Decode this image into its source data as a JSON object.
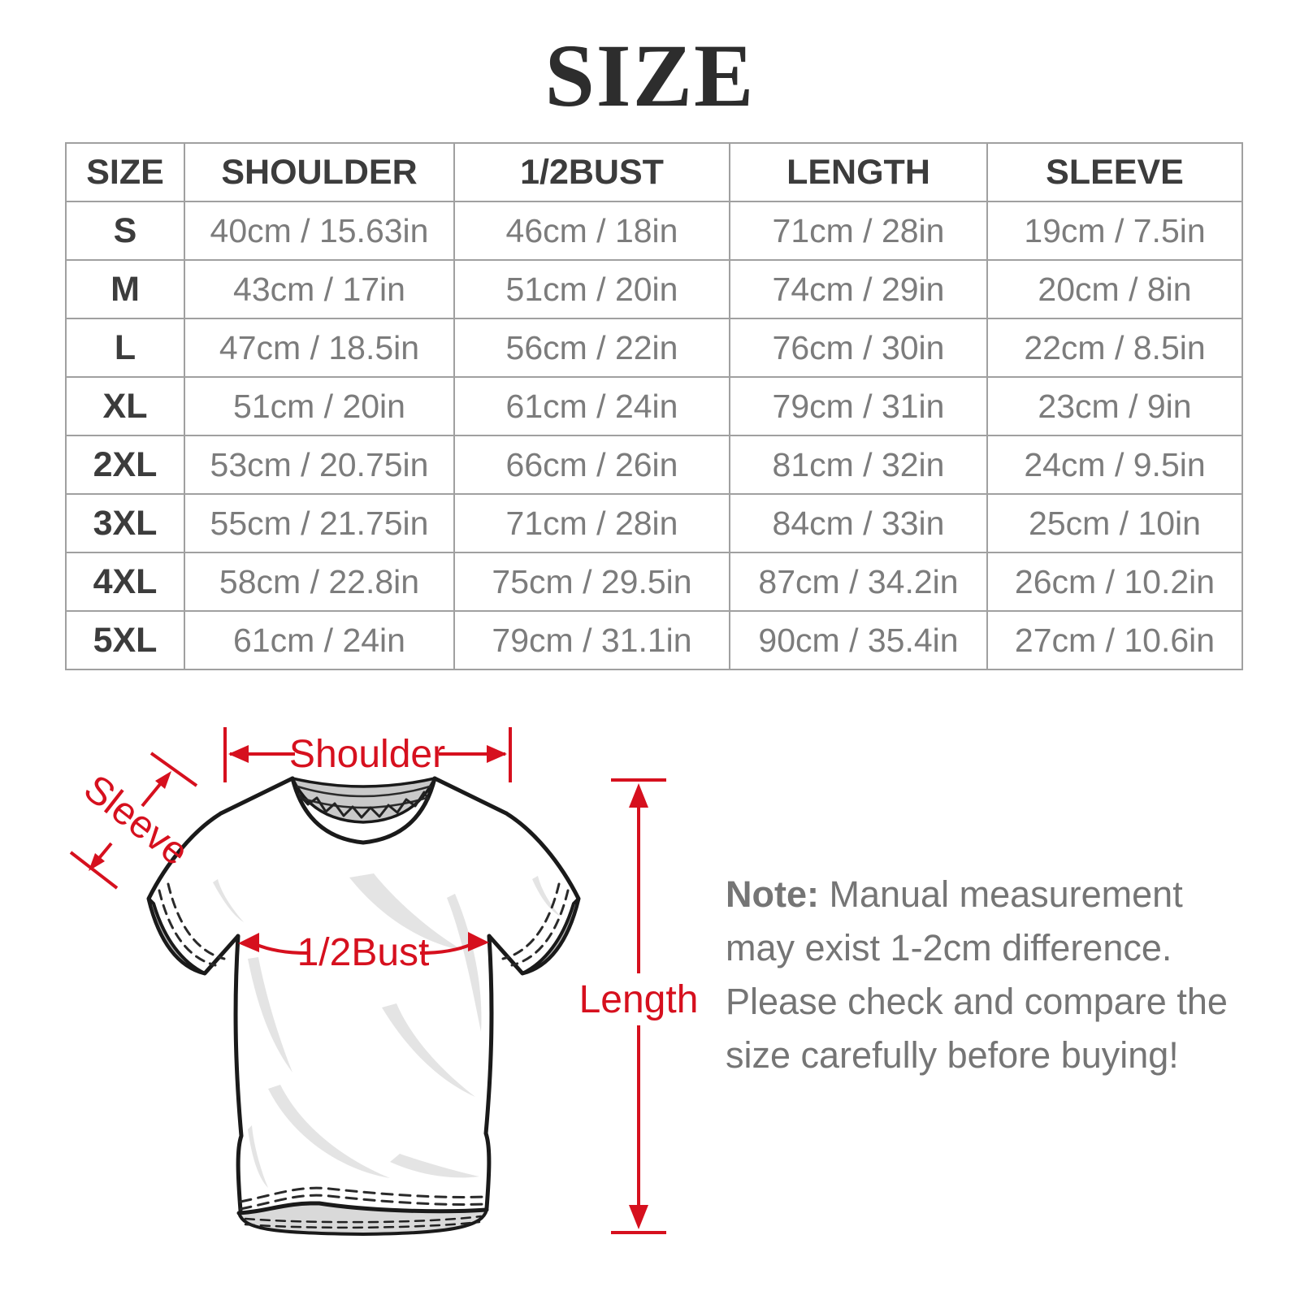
{
  "title": "SIZE",
  "accent_red": "#d6101e",
  "table": {
    "headers": [
      "SIZE",
      "SHOULDER",
      "1/2BUST",
      "LENGTH",
      "SLEEVE"
    ],
    "rows": [
      {
        "size": "S",
        "cells": [
          "40cm / 15.63in",
          "46cm / 18in",
          "71cm / 28in",
          "19cm / 7.5in"
        ]
      },
      {
        "size": "M",
        "cells": [
          "43cm / 17in",
          "51cm / 20in",
          "74cm / 29in",
          "20cm / 8in"
        ]
      },
      {
        "size": "L",
        "cells": [
          "47cm / 18.5in",
          "56cm / 22in",
          "76cm / 30in",
          "22cm / 8.5in"
        ]
      },
      {
        "size": "XL",
        "cells": [
          "51cm / 20in",
          "61cm / 24in",
          "79cm / 31in",
          "23cm / 9in"
        ]
      },
      {
        "size": "2XL",
        "cells": [
          "53cm / 20.75in",
          "66cm / 26in",
          "81cm / 32in",
          "24cm / 9.5in"
        ]
      },
      {
        "size": "3XL",
        "cells": [
          "55cm / 21.75in",
          "71cm / 28in",
          "84cm / 33in",
          "25cm / 10in"
        ]
      },
      {
        "size": "4XL",
        "cells": [
          "58cm / 22.8in",
          "75cm / 29.5in",
          "87cm / 34.2in",
          "26cm / 10.2in"
        ]
      },
      {
        "size": "5XL",
        "cells": [
          "61cm / 24in",
          "79cm / 31.1in",
          "90cm / 35.4in",
          "27cm / 10.6in"
        ]
      }
    ]
  },
  "diagram": {
    "labels": {
      "shoulder": "Shoulder",
      "sleeve": "Sleeve",
      "half_bust": "1/2Bust",
      "length": "Length"
    }
  },
  "note": {
    "label": "Note:",
    "text": " Manual measurement may exist 1-2cm difference. Please check and compare the size carefully before buying!"
  }
}
